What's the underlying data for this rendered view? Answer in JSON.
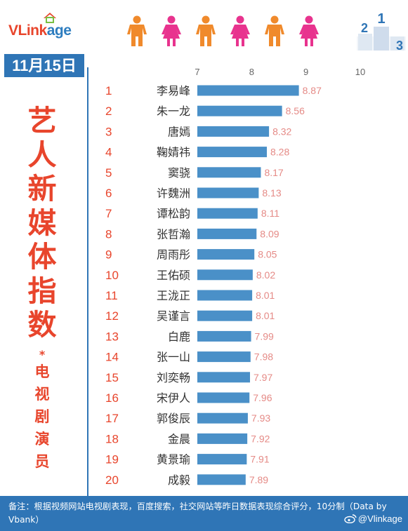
{
  "brand": {
    "logo_v": "VLink",
    "logo_rest": "age"
  },
  "date": "11月15日",
  "title_chars": [
    "艺",
    "人",
    "新",
    "媒",
    "体",
    "指",
    "数"
  ],
  "title_star": "*",
  "subtitle_chars": [
    "电",
    "视",
    "剧",
    "演",
    "员"
  ],
  "footer": {
    "note": "备注：根据视频网站电视剧表现，百度搜索，社交网站等昨日数据表现综合评分，10分制（Data by Vbank）",
    "watermark": "@Vlinkage"
  },
  "colors": {
    "accent": "#e8452c",
    "brand_blue": "#2f75b6",
    "bar": "#4a90c8",
    "value": "#e58a86"
  },
  "icons": [
    "vlinkage-logo-icon",
    "person-male-icon",
    "person-female-icon",
    "podium-icon",
    "weibo-icon"
  ],
  "chart_data": {
    "type": "bar",
    "orientation": "horizontal",
    "title": "艺人新媒体指数*电视剧演员",
    "xlim": [
      7,
      10
    ],
    "xticks": [
      7,
      8,
      9,
      10
    ],
    "categories": [
      "李易峰",
      "朱一龙",
      "唐嫣",
      "鞠婧祎",
      "窦骁",
      "许魏洲",
      "谭松韵",
      "张哲瀚",
      "周雨彤",
      "王佑硕",
      "王泷正",
      "吴谨言",
      "白鹿",
      "张一山",
      "刘奕畅",
      "宋伊人",
      "郭俊辰",
      "金晨",
      "黄景瑜",
      "成毅"
    ],
    "ranks": [
      "1",
      "2",
      "3",
      "4",
      "5",
      "6",
      "7",
      "8",
      "9",
      "10",
      "11",
      "12",
      "13",
      "14",
      "15",
      "16",
      "17",
      "18",
      "19",
      "20"
    ],
    "values": [
      8.87,
      8.56,
      8.32,
      8.28,
      8.17,
      8.13,
      8.11,
      8.09,
      8.05,
      8.02,
      8.01,
      8.01,
      7.99,
      7.98,
      7.97,
      7.96,
      7.93,
      7.92,
      7.91,
      7.89
    ],
    "value_labels": [
      "8.87",
      "8.56",
      "8.32",
      "8.28",
      "8.17",
      "8.13",
      "8.11",
      "8.09",
      "8.05",
      "8.02",
      "8.01",
      "8.01",
      "7.99",
      "7.98",
      "7.97",
      "7.96",
      "7.93",
      "7.92",
      "7.91",
      "7.89"
    ],
    "grid": false
  }
}
